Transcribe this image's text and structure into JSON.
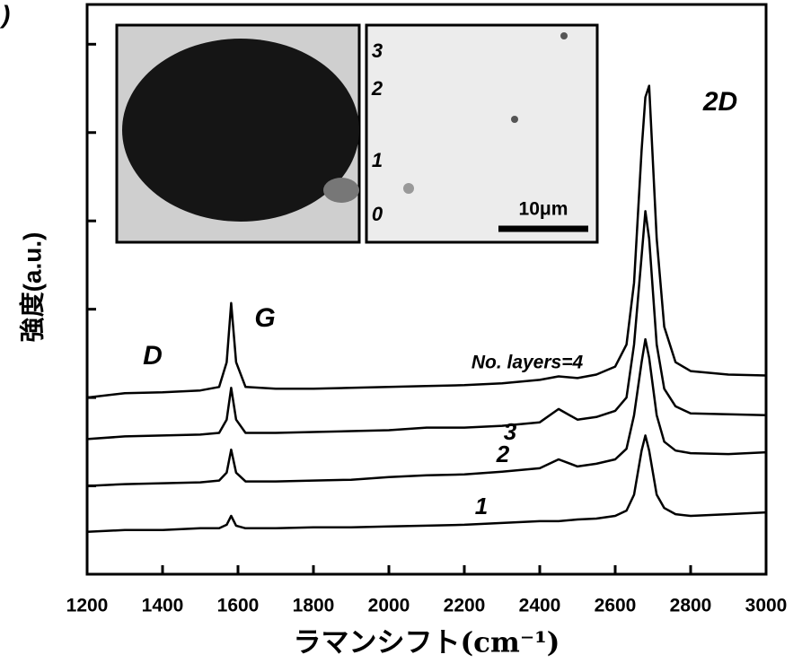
{
  "chart_data": {
    "type": "line",
    "xlabel": "ラマンシフト(cm⁻¹)",
    "ylabel": "強度(a.u.)",
    "annotations": [
      ")",
      "D",
      "G",
      "2D",
      "No. layers=4",
      "3",
      "2",
      "1",
      "3",
      "2",
      "1",
      "0",
      "10μm"
    ],
    "x": [
      1200,
      1300,
      1400,
      1500,
      1550,
      1570,
      1582,
      1595,
      1620,
      1700,
      1800,
      1900,
      2000,
      2100,
      2200,
      2300,
      2400,
      2450,
      2500,
      2550,
      2600,
      2630,
      2650,
      2670,
      2680,
      2690,
      2710,
      2730,
      2760,
      2800,
      2900,
      3000
    ],
    "series": [
      {
        "color": "#000000",
        "values": [
          0.48,
          0.5,
          0.5,
          0.52,
          0.52,
          0.56,
          0.66,
          0.55,
          0.52,
          0.52,
          0.53,
          0.53,
          0.54,
          0.55,
          0.56,
          0.58,
          0.6,
          0.6,
          0.62,
          0.63,
          0.66,
          0.72,
          0.9,
          1.4,
          1.57,
          1.4,
          0.9,
          0.75,
          0.68,
          0.66,
          0.68,
          0.7
        ]
      },
      {
        "color": "#000000",
        "values": [
          1.0,
          1.02,
          1.03,
          1.04,
          1.06,
          1.15,
          1.41,
          1.15,
          1.05,
          1.05,
          1.06,
          1.07,
          1.1,
          1.12,
          1.13,
          1.16,
          1.2,
          1.3,
          1.22,
          1.25,
          1.3,
          1.42,
          1.8,
          2.4,
          2.66,
          2.45,
          1.8,
          1.5,
          1.4,
          1.37,
          1.36,
          1.38
        ]
      },
      {
        "color": "#000000",
        "values": [
          1.53,
          1.56,
          1.57,
          1.58,
          1.6,
          1.75,
          2.11,
          1.75,
          1.6,
          1.6,
          1.61,
          1.62,
          1.63,
          1.66,
          1.66,
          1.68,
          1.72,
          1.87,
          1.75,
          1.78,
          1.85,
          2.0,
          2.6,
          3.6,
          4.11,
          3.8,
          2.6,
          2.1,
          1.9,
          1.82,
          1.81,
          1.8
        ]
      },
      {
        "color": "#000000",
        "values": [
          2.0,
          2.05,
          2.06,
          2.08,
          2.12,
          2.4,
          3.07,
          2.4,
          2.12,
          2.1,
          2.1,
          2.11,
          2.12,
          2.13,
          2.14,
          2.16,
          2.2,
          2.24,
          2.22,
          2.26,
          2.35,
          2.6,
          3.3,
          4.8,
          5.4,
          5.53,
          3.8,
          2.8,
          2.4,
          2.3,
          2.26,
          2.25
        ]
      }
    ],
    "xlim": [
      1200,
      3000
    ],
    "xticks": [
      1200,
      1400,
      1600,
      1800,
      2000,
      2200,
      2400,
      2600,
      2800,
      3000
    ],
    "ylim": [
      0,
      6.45
    ],
    "yticks": [
      1,
      2,
      3,
      4,
      5,
      6
    ]
  }
}
